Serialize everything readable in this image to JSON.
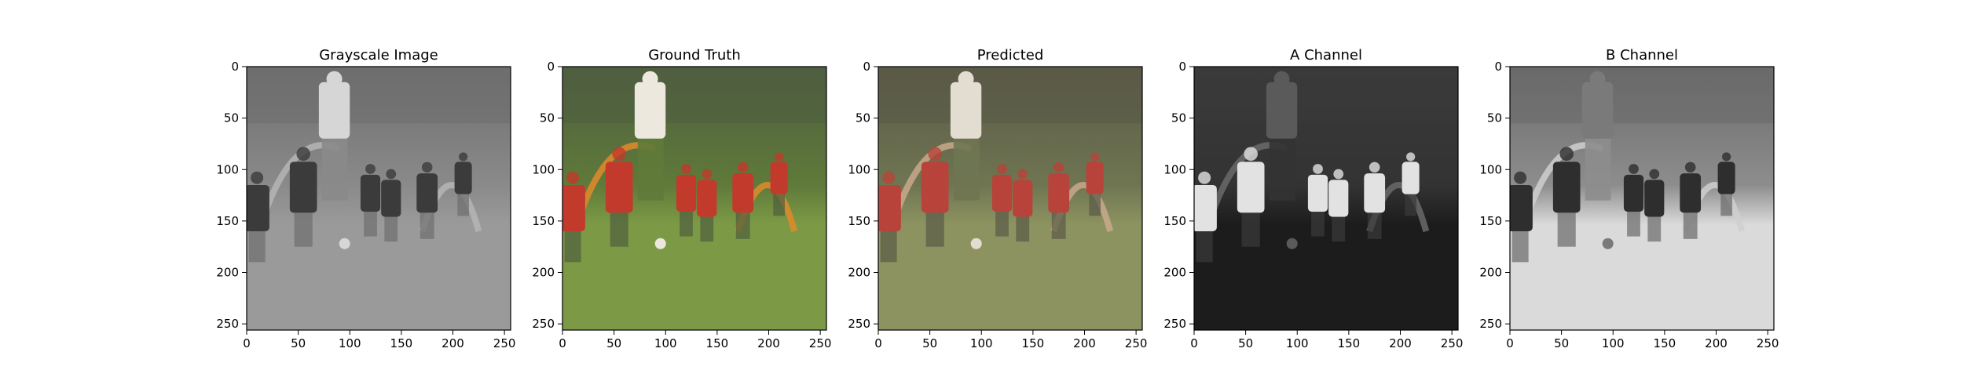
{
  "chart_data": [
    {
      "type": "image",
      "title": "Grayscale Image",
      "xlim": [
        0,
        256
      ],
      "ylim": [
        256,
        0
      ],
      "x_ticks": [
        0,
        50,
        100,
        150,
        200,
        250
      ],
      "y_ticks": [
        0,
        50,
        100,
        150,
        200,
        250
      ],
      "content": "grayscale",
      "colors": {
        "top": "#6e6e6e",
        "mid": "#8a8a8a",
        "ground": "#9a9a9a",
        "player": "#3b3b3b",
        "coach": "#d6d6d6",
        "accent": "#b5b5b5"
      }
    },
    {
      "type": "image",
      "title": "Ground Truth",
      "xlim": [
        0,
        256
      ],
      "ylim": [
        256,
        0
      ],
      "x_ticks": [
        0,
        50,
        100,
        150,
        200,
        250
      ],
      "y_ticks": [
        0,
        50,
        100,
        150,
        200,
        250
      ],
      "content": "color",
      "colors": {
        "top": "#4f5e3f",
        "mid": "#5f7a3a",
        "ground": "#7c9a45",
        "player": "#c23a2c",
        "coach": "#ece8de",
        "accent": "#e08a2a"
      }
    },
    {
      "type": "image",
      "title": "Predicted",
      "xlim": [
        0,
        256
      ],
      "ylim": [
        256,
        0
      ],
      "x_ticks": [
        0,
        50,
        100,
        150,
        200,
        250
      ],
      "y_ticks": [
        0,
        50,
        100,
        150,
        200,
        250
      ],
      "content": "color",
      "colors": {
        "top": "#5a5a47",
        "mid": "#6f7552",
        "ground": "#8c9360",
        "player": "#b8433a",
        "coach": "#e3ddd1",
        "accent": "#c9a98b"
      }
    },
    {
      "type": "image",
      "title": "A Channel",
      "xlim": [
        0,
        256
      ],
      "ylim": [
        256,
        0
      ],
      "x_ticks": [
        0,
        50,
        100,
        150,
        200,
        250
      ],
      "y_ticks": [
        0,
        50,
        100,
        150,
        200,
        250
      ],
      "content": "channel-dark",
      "colors": {
        "top": "#3a3a3a",
        "mid": "#333333",
        "ground": "#1c1c1c",
        "player": "#e2e2e2",
        "coach": "#5a5a5a",
        "accent": "#6a6a6a"
      }
    },
    {
      "type": "image",
      "title": "B Channel",
      "xlim": [
        0,
        256
      ],
      "ylim": [
        256,
        0
      ],
      "x_ticks": [
        0,
        50,
        100,
        150,
        200,
        250
      ],
      "y_ticks": [
        0,
        50,
        100,
        150,
        200,
        250
      ],
      "content": "channel-light",
      "colors": {
        "top": "#6a6a6a",
        "mid": "#8d8d8d",
        "ground": "#dadada",
        "player": "#2e2e2e",
        "coach": "#7a7a7a",
        "accent": "#cfcfcf"
      }
    }
  ]
}
